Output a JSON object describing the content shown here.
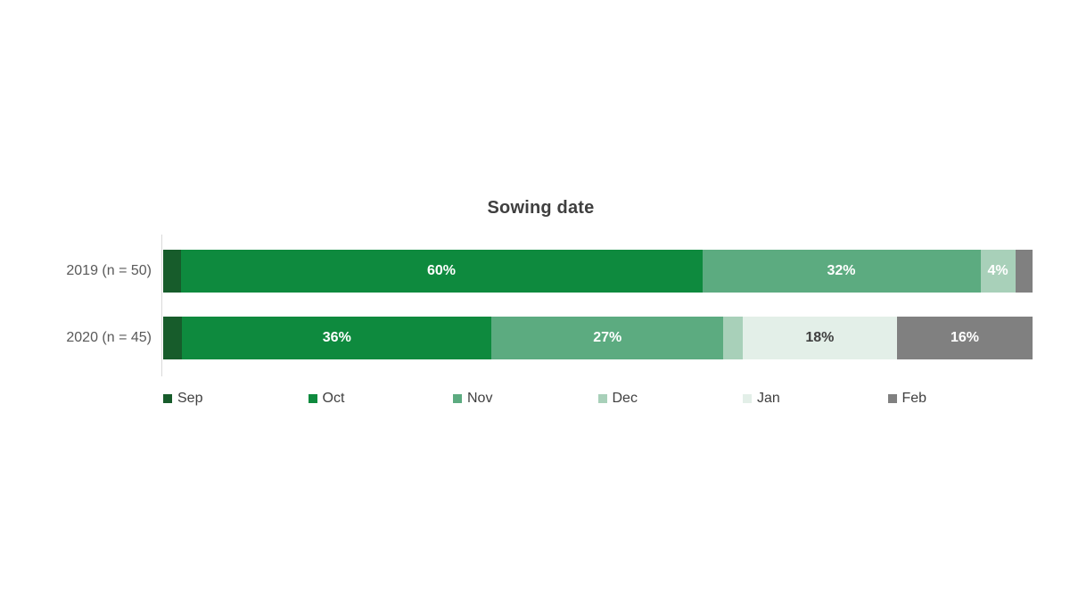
{
  "chart_data": {
    "type": "bar",
    "variant": "horizontal-stacked",
    "title": "Sowing date",
    "categories": [
      "Sep",
      "Oct",
      "Nov",
      "Dec",
      "Jan",
      "Feb"
    ],
    "colors": {
      "Sep": "#175c2b",
      "Oct": "#0e8a3e",
      "Nov": "#5cab80",
      "Dec": "#a8d0b9",
      "Jan": "#e3efe8",
      "Feb": "#808080"
    },
    "xlim": [
      0,
      100
    ],
    "unit": "%",
    "legend_position": "bottom",
    "rows": [
      {
        "label": "2019 (n = 50)",
        "segments": [
          {
            "month": "Sep",
            "value": 2,
            "label": "",
            "label_color": "#ffffff"
          },
          {
            "month": "Oct",
            "value": 60,
            "label": "60%",
            "label_color": "#ffffff"
          },
          {
            "month": "Nov",
            "value": 32,
            "label": "32%",
            "label_color": "#ffffff"
          },
          {
            "month": "Dec",
            "value": 4,
            "label": "4%",
            "label_color": "#ffffff"
          },
          {
            "month": "Jan",
            "value": 0,
            "label": "",
            "label_color": "#ffffff"
          },
          {
            "month": "Feb",
            "value": 2,
            "label": "",
            "label_color": "#ffffff"
          }
        ]
      },
      {
        "label": "2020 (n = 45)",
        "segments": [
          {
            "month": "Sep",
            "value": 2.2,
            "label": "",
            "label_color": "#ffffff"
          },
          {
            "month": "Oct",
            "value": 35.6,
            "label": "36%",
            "label_color": "#ffffff"
          },
          {
            "month": "Nov",
            "value": 26.7,
            "label": "27%",
            "label_color": "#ffffff"
          },
          {
            "month": "Dec",
            "value": 2.2,
            "label": "",
            "label_color": "#ffffff"
          },
          {
            "month": "Jan",
            "value": 17.8,
            "label": "18%",
            "label_color": "#404040"
          },
          {
            "month": "Feb",
            "value": 15.6,
            "label": "16%",
            "label_color": "#ffffff"
          }
        ]
      }
    ]
  },
  "layout": {
    "row_tops": [
      280,
      355
    ]
  }
}
